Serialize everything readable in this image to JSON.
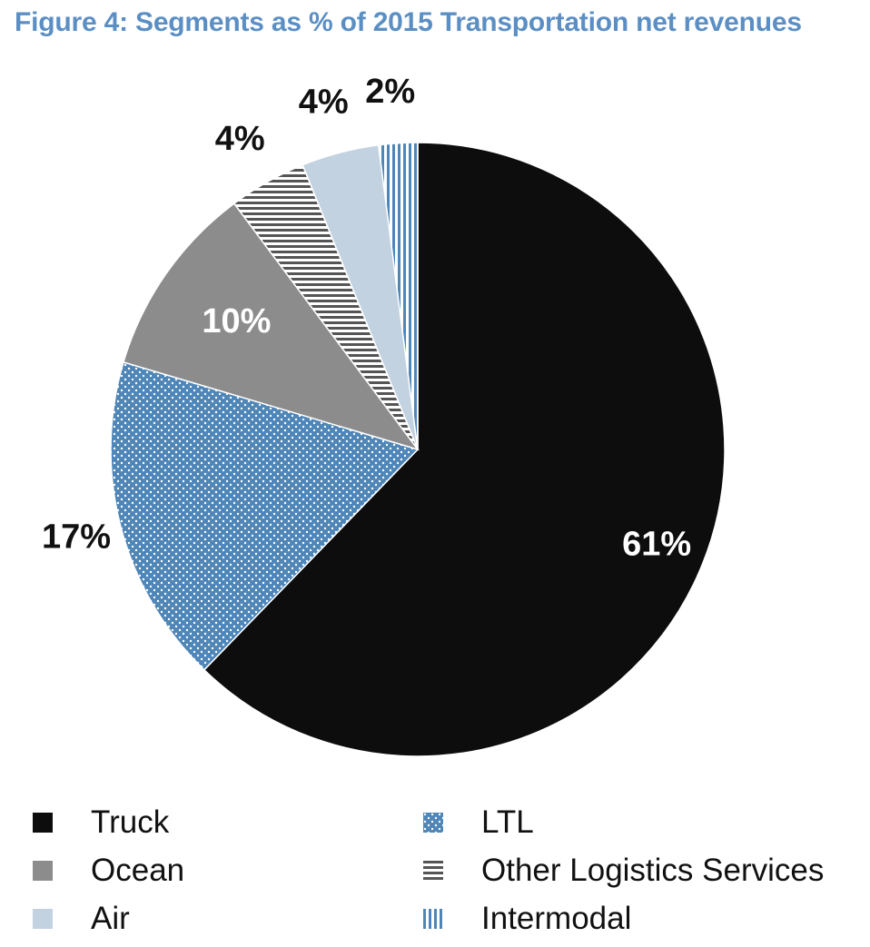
{
  "chart_data": {
    "type": "pie",
    "title": "Figure 4: Segments as % of 2015 Transportation net revenues",
    "categories": [
      "Truck",
      "LTL",
      "Ocean",
      "Other Logistics Services",
      "Air",
      "Intermodal"
    ],
    "values": [
      61,
      17,
      10,
      4,
      4,
      2
    ],
    "labels": [
      "61%",
      "17%",
      "10%",
      "4%",
      "4%",
      "2%"
    ],
    "colors": [
      "#0d0d0d",
      "#4f86b8",
      "#8c8c8c",
      "#555555",
      "#c3d2e1",
      "#4f86b8"
    ],
    "patterns": [
      "solid",
      "dots",
      "solid",
      "horizontal-lines",
      "solid",
      "vertical-lines"
    ],
    "label_colors": [
      "#ffffff",
      "#111111",
      "#ffffff",
      "#111111",
      "#111111",
      "#111111"
    ],
    "start_angle_deg": 0,
    "direction": "clockwise",
    "legend_position": "bottom"
  },
  "legend": {
    "items": [
      {
        "label": "Truck",
        "pattern": "solid",
        "color": "#0d0d0d"
      },
      {
        "label": "LTL",
        "pattern": "dots",
        "color": "#4f86b8"
      },
      {
        "label": "Ocean",
        "pattern": "solid",
        "color": "#8c8c8c"
      },
      {
        "label": "Other Logistics Services",
        "pattern": "horizontal-lines",
        "color": "#555555"
      },
      {
        "label": "Air",
        "pattern": "solid",
        "color": "#c3d2e1"
      },
      {
        "label": "Intermodal",
        "pattern": "vertical-lines",
        "color": "#4f86b8"
      }
    ]
  }
}
